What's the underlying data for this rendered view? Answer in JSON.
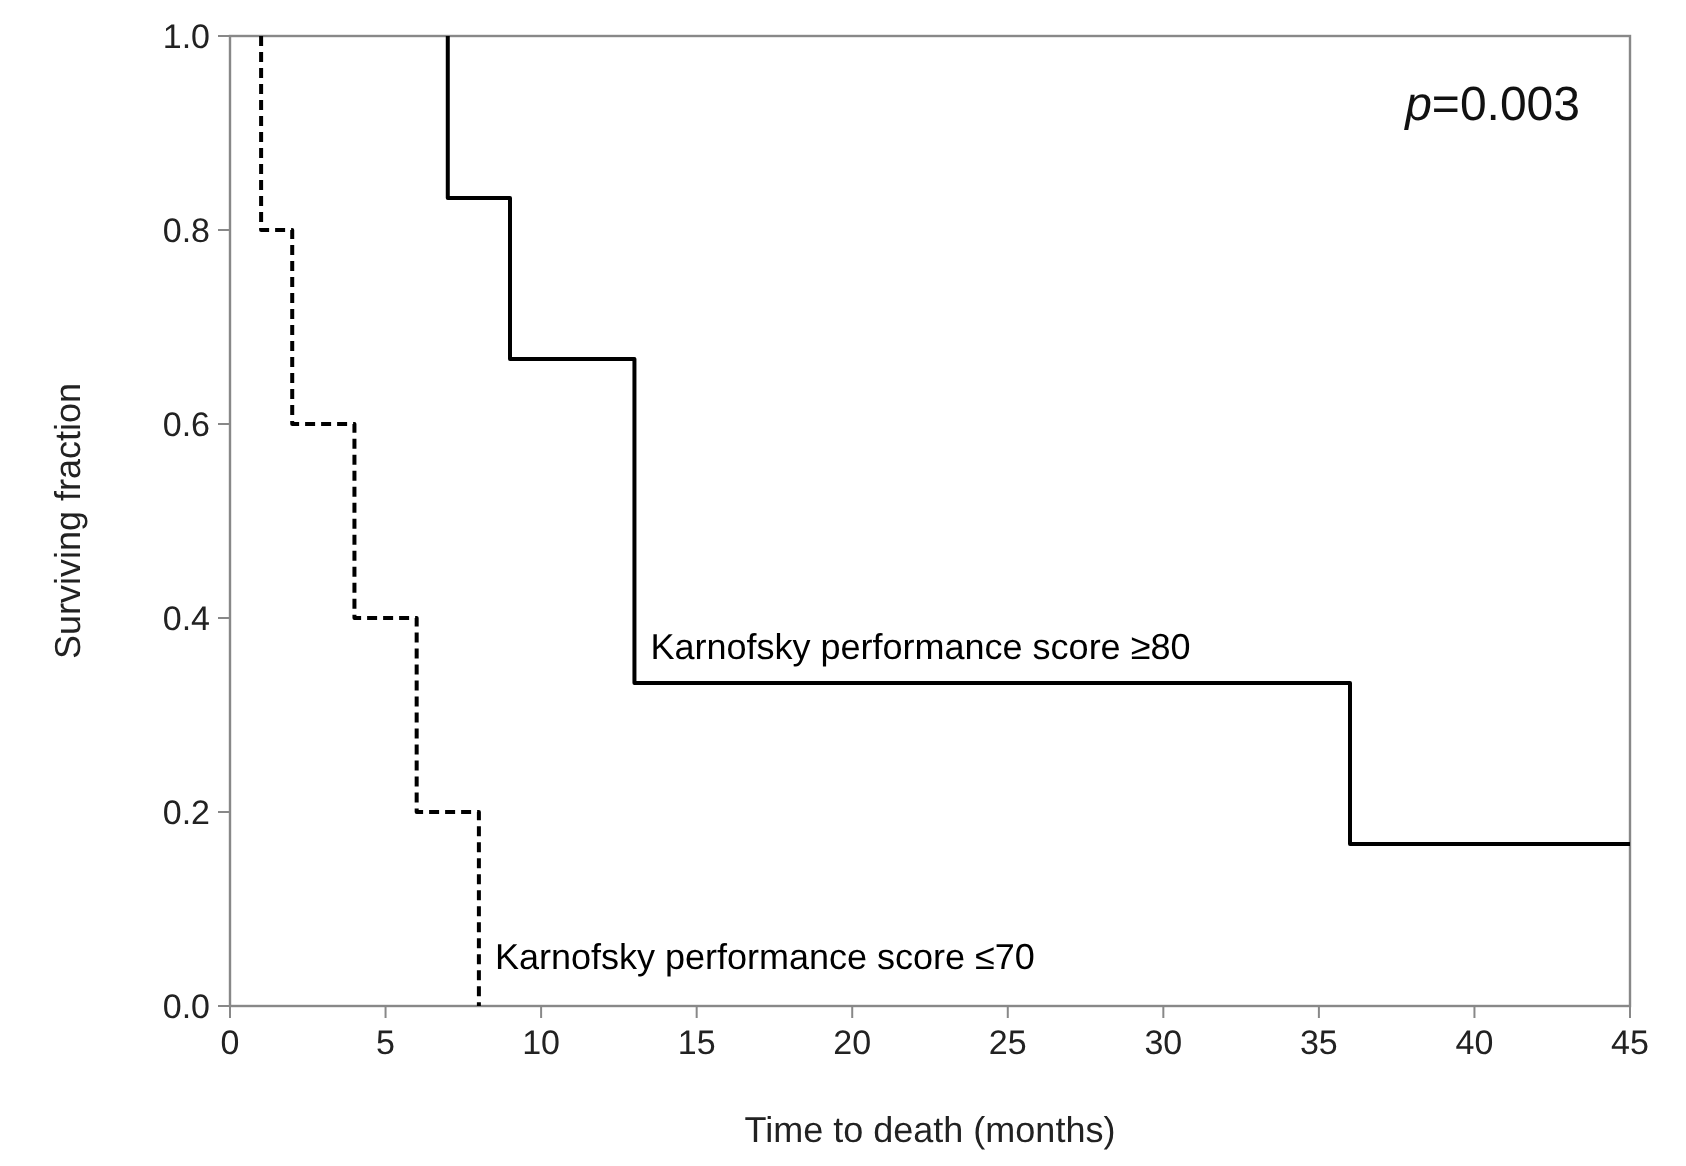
{
  "chart_data": {
    "type": "step",
    "xlabel": "Time to death (months)",
    "ylabel": "Surviving fraction",
    "xlim": [
      0,
      45
    ],
    "xticks": [
      0,
      5,
      10,
      15,
      20,
      25,
      30,
      35,
      40,
      45
    ],
    "ylim": [
      0,
      1
    ],
    "yticks": [
      {
        "value": 0,
        "label": "0.0"
      },
      {
        "value": 0.2,
        "label": "0.2"
      },
      {
        "value": 0.4,
        "label": "0.4"
      },
      {
        "value": 0.6,
        "label": "0.6"
      },
      {
        "value": 0.8,
        "label": "0.8"
      },
      {
        "value": 1,
        "label": "1.0"
      }
    ],
    "grid": false,
    "marker": "none",
    "annotations": [
      "p=0.003"
    ],
    "series": [
      {
        "name": "Karnofsky performance score ≥80",
        "color": "#000000",
        "line_style": "solid",
        "x": [
          7,
          7,
          9,
          13,
          36,
          45
        ],
        "values": [
          1,
          0.833,
          0.667,
          0.333,
          0.167,
          0.167
        ]
      },
      {
        "name": "Karnofsky performance score ≤70",
        "color": "#000000",
        "line_style": "dashed",
        "x": [
          1,
          1,
          2,
          4,
          6,
          8
        ],
        "values": [
          1,
          0.8,
          0.6,
          0.4,
          0.2,
          0
        ]
      }
    ]
  }
}
